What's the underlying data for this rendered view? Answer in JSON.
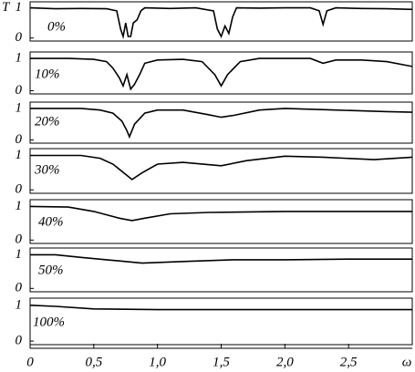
{
  "chart_data": [
    {
      "type": "line",
      "ylabel": "T",
      "annotation": "0%",
      "ylim": [
        -0.1,
        1.2
      ],
      "yticks": [
        0,
        1
      ],
      "xlim": [
        0,
        3
      ],
      "x": [
        0,
        0.2,
        0.4,
        0.6,
        0.68,
        0.71,
        0.73,
        0.75,
        0.77,
        0.79,
        0.81,
        0.84,
        0.87,
        0.9,
        1.1,
        1.3,
        1.44,
        1.47,
        1.5,
        1.53,
        1.56,
        1.59,
        1.62,
        1.8,
        2.0,
        2.2,
        2.27,
        2.3,
        2.33,
        2.4,
        2.6,
        2.8,
        3.0
      ],
      "values": [
        1,
        0.97,
        0.98,
        0.97,
        0.9,
        0.3,
        0.05,
        0.5,
        0.05,
        0.05,
        0.5,
        0.6,
        0.9,
        1,
        0.98,
        1,
        0.9,
        0.3,
        0.05,
        0.4,
        0.15,
        0.7,
        1,
        0.99,
        1,
        1,
        0.9,
        0.45,
        0.9,
        1,
        0.98,
        0.97,
        0.95
      ]
    },
    {
      "type": "line",
      "annotation": "10%",
      "ylim": [
        -0.1,
        1.2
      ],
      "yticks": [
        0,
        1
      ],
      "xlim": [
        0,
        3
      ],
      "x": [
        0,
        0.3,
        0.5,
        0.6,
        0.65,
        0.7,
        0.73,
        0.76,
        0.79,
        0.82,
        0.86,
        0.9,
        1.0,
        1.2,
        1.35,
        1.45,
        1.5,
        1.55,
        1.65,
        1.8,
        2.0,
        2.2,
        2.3,
        2.4,
        2.6,
        2.8,
        3.0
      ],
      "values": [
        1,
        1,
        0.97,
        0.9,
        0.7,
        0.4,
        0.15,
        0.5,
        0.05,
        0.2,
        0.5,
        0.85,
        0.95,
        0.97,
        0.9,
        0.5,
        0.15,
        0.5,
        0.9,
        1,
        1,
        1,
        0.85,
        0.95,
        0.95,
        0.9,
        0.75
      ]
    },
    {
      "type": "line",
      "annotation": "20%",
      "ylim": [
        -0.1,
        1.2
      ],
      "yticks": [
        0,
        1
      ],
      "xlim": [
        0,
        3
      ],
      "x": [
        0,
        0.4,
        0.55,
        0.65,
        0.72,
        0.76,
        0.78,
        0.82,
        0.9,
        1.0,
        1.2,
        1.4,
        1.5,
        1.6,
        1.8,
        2.0,
        2.4,
        2.8,
        3.0
      ],
      "values": [
        1,
        1,
        0.95,
        0.85,
        0.6,
        0.3,
        0.1,
        0.5,
        0.85,
        0.95,
        0.95,
        0.8,
        0.72,
        0.78,
        0.95,
        1.0,
        0.95,
        0.9,
        0.88
      ]
    },
    {
      "type": "line",
      "annotation": "30%",
      "ylim": [
        -0.1,
        1.2
      ],
      "yticks": [
        0,
        1
      ],
      "xlim": [
        0,
        3
      ],
      "x": [
        0,
        0.4,
        0.55,
        0.65,
        0.75,
        0.8,
        0.88,
        1.0,
        1.2,
        1.5,
        1.7,
        2.0,
        2.3,
        2.7,
        3.0
      ],
      "values": [
        1,
        1,
        0.92,
        0.75,
        0.45,
        0.3,
        0.5,
        0.75,
        0.8,
        0.7,
        0.85,
        0.98,
        0.95,
        0.88,
        0.95
      ]
    },
    {
      "type": "line",
      "annotation": "40%",
      "ylim": [
        -0.1,
        1.2
      ],
      "yticks": [
        0,
        1
      ],
      "xlim": [
        0,
        3
      ],
      "x": [
        0,
        0.3,
        0.5,
        0.7,
        0.8,
        0.9,
        1.1,
        1.4,
        2.0,
        2.5,
        3.0
      ],
      "values": [
        1,
        0.98,
        0.85,
        0.65,
        0.58,
        0.65,
        0.78,
        0.82,
        0.85,
        0.85,
        0.85
      ]
    },
    {
      "type": "line",
      "annotation": "50%",
      "ylim": [
        -0.1,
        1.2
      ],
      "yticks": [
        0,
        1
      ],
      "xlim": [
        0,
        3
      ],
      "x": [
        0,
        0.2,
        0.4,
        0.6,
        0.88,
        1.2,
        1.6,
        2.0,
        2.5,
        3.0
      ],
      "values": [
        1,
        1,
        0.92,
        0.85,
        0.75,
        0.8,
        0.85,
        0.85,
        0.87,
        0.87
      ]
    },
    {
      "type": "line",
      "annotation": "100%",
      "ylim": [
        -0.1,
        1.2
      ],
      "yticks": [
        0,
        1
      ],
      "xlim": [
        0,
        3
      ],
      "xlabel": "ω",
      "xticks": [
        0,
        {
          "value": 0.5,
          "label": "0,5"
        },
        {
          "value": 1,
          "label": "1,0"
        },
        {
          "value": 1.5,
          "label": "1,5"
        },
        {
          "value": 2,
          "label": "2,0"
        },
        {
          "value": 2.5,
          "label": "2,5"
        }
      ],
      "x": [
        0,
        0.2,
        0.5,
        1.0,
        1.5,
        2.0,
        2.5,
        3.0
      ],
      "values": [
        1,
        0.97,
        0.9,
        0.88,
        0.88,
        0.88,
        0.88,
        0.88
      ]
    }
  ]
}
